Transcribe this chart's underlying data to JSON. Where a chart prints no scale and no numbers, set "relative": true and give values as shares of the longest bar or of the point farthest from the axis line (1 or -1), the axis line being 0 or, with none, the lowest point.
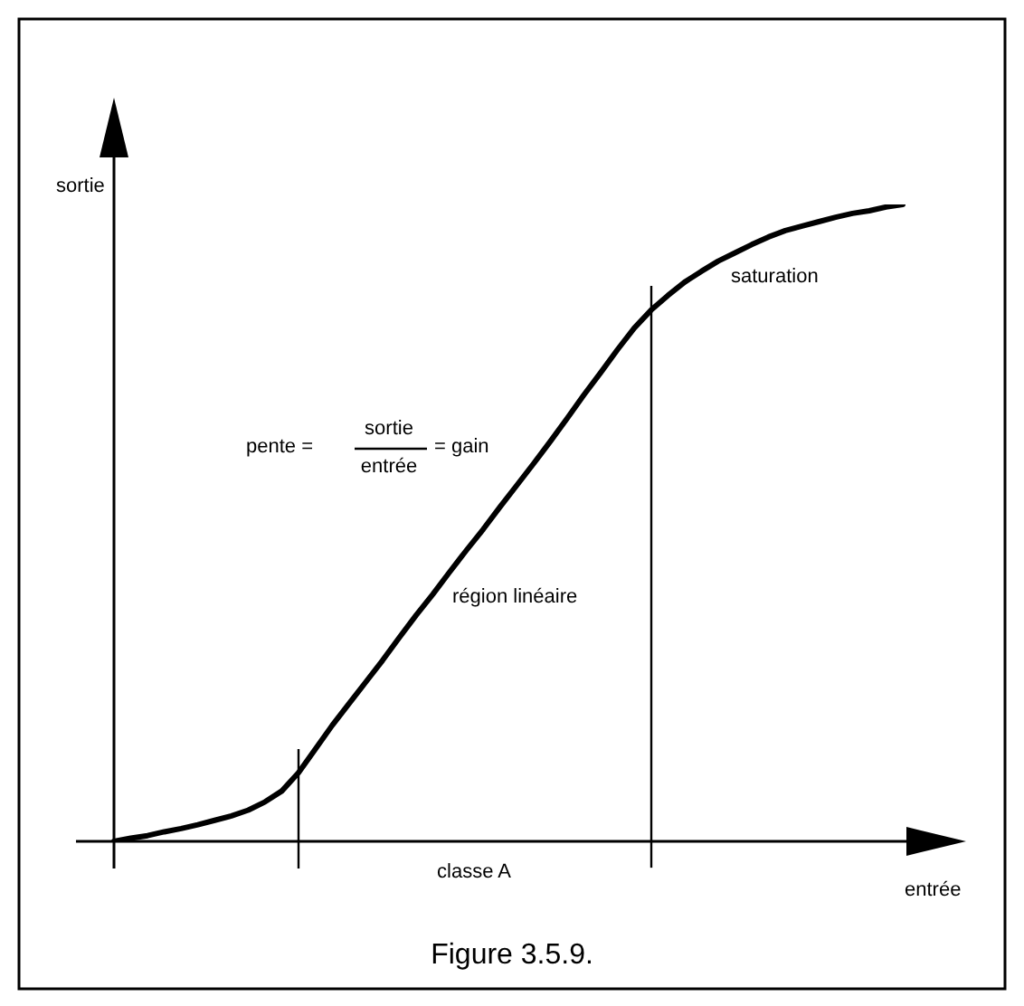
{
  "chart_data": {
    "type": "line",
    "title": "Figure 3.5.9.",
    "xlabel": "entrée",
    "ylabel": "sortie",
    "relative": true,
    "categories": [
      null,
      null,
      null,
      null,
      null,
      null,
      null,
      null,
      null,
      null,
      null,
      null,
      null,
      null,
      null,
      null,
      null,
      null,
      null,
      null,
      null,
      null,
      null,
      null,
      null,
      null,
      null,
      null,
      null,
      null,
      null,
      null,
      null,
      null,
      null,
      null,
      null,
      null,
      null,
      null,
      null,
      null,
      null,
      null,
      null,
      null,
      null,
      null
    ],
    "values": [
      0,
      0.005,
      0.009,
      0.015,
      0.02,
      0.026,
      0.033,
      0.04,
      0.049,
      0.062,
      0.079,
      0.108,
      0.145,
      0.182,
      0.216,
      0.25,
      0.284,
      0.32,
      0.355,
      0.388,
      0.423,
      0.457,
      0.49,
      0.525,
      0.559,
      0.593,
      0.628,
      0.664,
      0.701,
      0.736,
      0.772,
      0.806,
      0.834,
      0.857,
      0.878,
      0.895,
      0.911,
      0.924,
      0.937,
      0.949,
      0.959,
      0.966,
      0.973,
      0.98,
      0.986,
      0.99,
      0.996,
      1
    ],
    "color": "#000000",
    "tick_labels": false,
    "marker": "none",
    "line_style": "solid",
    "annotations": [
      "pente =",
      "sortie",
      "entrée",
      "= gain",
      "région linéaire",
      "saturation",
      "classe A"
    ]
  }
}
